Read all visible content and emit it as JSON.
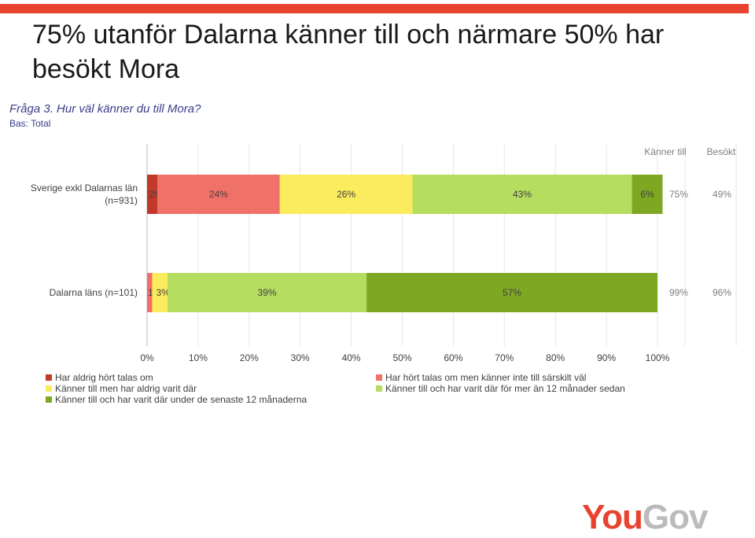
{
  "header": {
    "title": "75% utanför Dalarna känner till och närmare 50% har besökt Mora",
    "question": "Fråga 3. Hur väl känner du till Mora?",
    "base": "Bas: Total"
  },
  "chart_data": {
    "type": "bar",
    "orientation": "horizontal-stacked-100",
    "categories": [
      "Sverige exkl Dalarnas län (n=931)",
      "Dalarna läns (n=101)"
    ],
    "category_labels": [
      [
        "Sverige exkl Dalarnas län",
        "(n=931)"
      ],
      [
        "Dalarna läns (n=101)"
      ]
    ],
    "series": [
      {
        "name": "Har aldrig hört talas om",
        "color": "#c0392b",
        "values": [
          2,
          0
        ],
        "labels": [
          "2%",
          ""
        ]
      },
      {
        "name": "Har hört talas om men känner inte till särskilt väl",
        "color": "#f07167",
        "values": [
          24,
          1
        ],
        "labels": [
          "24%",
          "1%"
        ]
      },
      {
        "name": "Känner till men har aldrig varit där",
        "color": "#fbec5d",
        "values": [
          26,
          3
        ],
        "labels": [
          "26%",
          "3%"
        ]
      },
      {
        "name": "Känner till och har varit där för mer än 12 månader sedan",
        "color": "#b5dd5f",
        "values": [
          43,
          39
        ],
        "labels": [
          "43%",
          "39%"
        ]
      },
      {
        "name": "Känner till och har varit där under de senaste 12 månaderna",
        "color": "#7fa822",
        "values": [
          6,
          57
        ],
        "labels": [
          "6%",
          "57%"
        ]
      }
    ],
    "extra_columns": [
      {
        "header": "Känner till",
        "values": [
          "75%",
          "99%"
        ]
      },
      {
        "header": "Besökt",
        "values": [
          "49%",
          "96%"
        ]
      }
    ],
    "xlim": [
      0,
      100
    ],
    "xticks": [
      "0%",
      "10%",
      "20%",
      "30%",
      "40%",
      "50%",
      "60%",
      "70%",
      "80%",
      "90%",
      "100%"
    ],
    "grid": true,
    "legend_position": "bottom"
  },
  "logo": {
    "part1": "You",
    "part2": "Gov"
  }
}
